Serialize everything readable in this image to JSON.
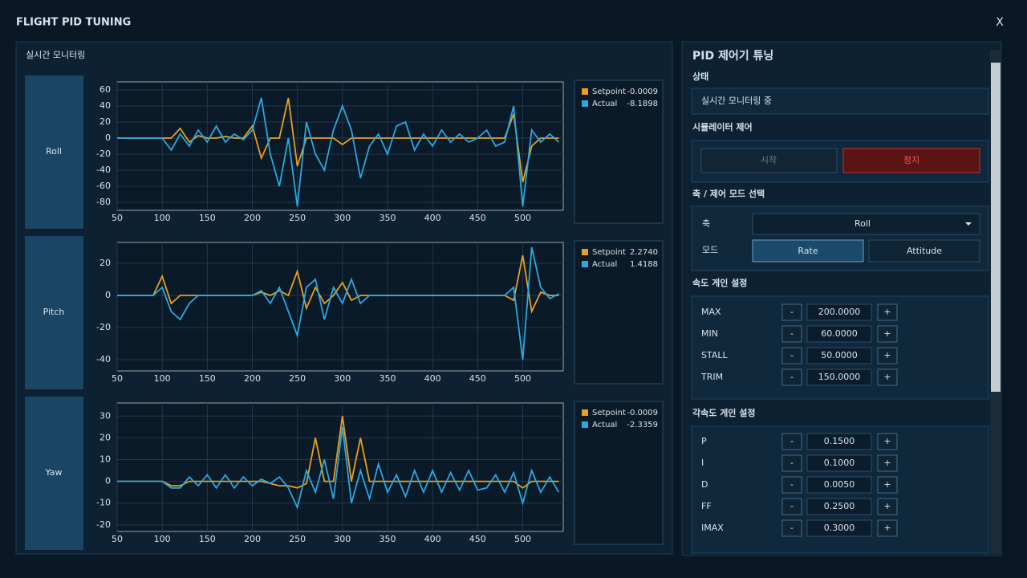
{
  "window": {
    "title": "FLIGHT PID TUNING",
    "close": "X"
  },
  "monitor": {
    "title": "실시간 모니터링"
  },
  "chart_data": [
    {
      "type": "line",
      "axis_label": "Roll",
      "x": [
        50,
        60,
        70,
        80,
        90,
        100,
        110,
        120,
        130,
        140,
        150,
        160,
        170,
        180,
        190,
        200,
        210,
        220,
        230,
        240,
        250,
        260,
        270,
        280,
        290,
        300,
        310,
        320,
        330,
        340,
        350,
        360,
        370,
        380,
        390,
        400,
        410,
        420,
        430,
        440,
        450,
        460,
        470,
        480,
        490,
        500,
        510,
        520,
        530,
        540
      ],
      "xlim": [
        50,
        545
      ],
      "xticks": [
        50,
        100,
        150,
        200,
        250,
        300,
        350,
        400,
        450,
        500
      ],
      "ylim": [
        -90,
        70
      ],
      "yticks": [
        60,
        40,
        20,
        0,
        -20,
        -40,
        -60,
        -80
      ],
      "grid": true,
      "series": [
        {
          "name": "Setpoint",
          "color": "#e8a020",
          "values": [
            0,
            0,
            0,
            0,
            0,
            0,
            0,
            12,
            -5,
            3,
            0,
            0,
            2,
            0,
            0,
            15,
            -25,
            0,
            0,
            50,
            -35,
            0,
            0,
            0,
            0,
            -8,
            0,
            0,
            0,
            0,
            0,
            0,
            0,
            0,
            0,
            0,
            0,
            0,
            0,
            0,
            0,
            0,
            0,
            0,
            30,
            -55,
            -10,
            0,
            0,
            0
          ]
        },
        {
          "name": "Actual",
          "color": "#2aa8e0",
          "values": [
            0,
            0,
            0,
            0,
            0,
            0,
            -15,
            5,
            -10,
            10,
            -5,
            15,
            -5,
            5,
            -2,
            10,
            50,
            -20,
            -60,
            0,
            -85,
            20,
            -20,
            -40,
            10,
            40,
            10,
            -50,
            -10,
            5,
            -20,
            15,
            20,
            -15,
            5,
            -10,
            10,
            -5,
            5,
            -5,
            0,
            10,
            -10,
            -5,
            40,
            -85,
            10,
            -5,
            5,
            -5
          ]
        }
      ],
      "legend_values": [
        "-0.0009",
        "-8.1898"
      ]
    },
    {
      "type": "line",
      "axis_label": "Pitch",
      "x": [
        50,
        60,
        70,
        80,
        90,
        100,
        110,
        120,
        130,
        140,
        150,
        160,
        170,
        180,
        190,
        200,
        210,
        220,
        230,
        240,
        250,
        260,
        270,
        280,
        290,
        300,
        310,
        320,
        330,
        340,
        350,
        360,
        370,
        380,
        390,
        400,
        410,
        420,
        430,
        440,
        450,
        460,
        470,
        480,
        490,
        500,
        510,
        520,
        530,
        540
      ],
      "xlim": [
        50,
        545
      ],
      "xticks": [
        50,
        100,
        150,
        200,
        250,
        300,
        350,
        400,
        450,
        500
      ],
      "ylim": [
        -47,
        33
      ],
      "yticks": [
        20,
        0,
        -20,
        -40
      ],
      "grid": true,
      "series": [
        {
          "name": "Setpoint",
          "color": "#e8a020",
          "values": [
            0,
            0,
            0,
            0,
            0,
            12,
            -5,
            0,
            0,
            0,
            0,
            0,
            0,
            0,
            0,
            0,
            2,
            0,
            3,
            0,
            15,
            -8,
            5,
            -5,
            0,
            8,
            -3,
            0,
            0,
            0,
            0,
            0,
            0,
            0,
            0,
            0,
            0,
            0,
            0,
            0,
            0,
            0,
            0,
            0,
            -3,
            25,
            -10,
            2,
            0,
            0
          ]
        },
        {
          "name": "Actual",
          "color": "#2aa8e0",
          "values": [
            0,
            0,
            0,
            0,
            0,
            5,
            -10,
            -15,
            -5,
            0,
            0,
            0,
            0,
            0,
            0,
            0,
            3,
            -5,
            5,
            -10,
            -25,
            5,
            10,
            -15,
            5,
            -5,
            10,
            -5,
            0,
            0,
            0,
            0,
            0,
            0,
            0,
            0,
            0,
            0,
            0,
            0,
            0,
            0,
            0,
            0,
            5,
            -40,
            30,
            5,
            -2,
            1
          ]
        }
      ],
      "legend_values": [
        "2.2740",
        "1.4188"
      ]
    },
    {
      "type": "line",
      "axis_label": "Yaw",
      "x": [
        50,
        60,
        70,
        80,
        90,
        100,
        110,
        120,
        130,
        140,
        150,
        160,
        170,
        180,
        190,
        200,
        210,
        220,
        230,
        240,
        250,
        260,
        270,
        280,
        290,
        300,
        310,
        320,
        330,
        340,
        350,
        360,
        370,
        380,
        390,
        400,
        410,
        420,
        430,
        440,
        450,
        460,
        470,
        480,
        490,
        500,
        510,
        520,
        530,
        540
      ],
      "xlim": [
        50,
        545
      ],
      "xticks": [
        50,
        100,
        150,
        200,
        250,
        300,
        350,
        400,
        450,
        500
      ],
      "ylim": [
        -23,
        36
      ],
      "yticks": [
        30,
        20,
        10,
        0,
        -10,
        -20
      ],
      "grid": true,
      "series": [
        {
          "name": "Setpoint",
          "color": "#e8a020",
          "values": [
            0,
            0,
            0,
            0,
            0,
            0,
            -2,
            -2,
            0,
            0,
            0,
            0,
            0,
            0,
            0,
            0,
            0,
            -1,
            -2,
            -2,
            -3,
            -1,
            20,
            0,
            0,
            30,
            0,
            20,
            0,
            0,
            0,
            0,
            0,
            0,
            0,
            0,
            0,
            0,
            0,
            0,
            0,
            0,
            0,
            0,
            0,
            -3,
            0,
            0,
            0,
            0
          ]
        },
        {
          "name": "Actual",
          "color": "#2aa8e0",
          "values": [
            0,
            0,
            0,
            0,
            0,
            0,
            -3,
            -3,
            2,
            -2,
            3,
            -3,
            3,
            -3,
            2,
            -2,
            1,
            -1,
            2,
            -3,
            -12,
            5,
            -5,
            10,
            -8,
            25,
            -10,
            5,
            -8,
            8,
            -5,
            3,
            -7,
            5,
            -5,
            5,
            -5,
            4,
            -4,
            5,
            -4,
            -3,
            3,
            -5,
            4,
            -10,
            5,
            -5,
            2,
            -5
          ]
        }
      ],
      "legend_values": [
        "-0.0009",
        "-2.3359"
      ]
    }
  ],
  "pid_panel": {
    "title": "PID 제어기 튜닝",
    "status_heading": "상태",
    "status": "실시간 모니터링 중",
    "sim_heading": "시뮬레이터 제어",
    "start": "시작",
    "stop": "정지",
    "axis_heading": "축 / 제어 모드 선택",
    "axis_label": "축",
    "axis_value": "Roll",
    "mode_label": "모드",
    "modes": [
      "Rate",
      "Attitude"
    ],
    "minus": "-",
    "plus": "+",
    "rate_heading": "속도 게인 설정",
    "rate_gains": [
      {
        "name": "MAX",
        "value": "200.0000"
      },
      {
        "name": "MIN",
        "value": "60.0000"
      },
      {
        "name": "STALL",
        "value": "50.0000"
      },
      {
        "name": "TRIM",
        "value": "150.0000"
      }
    ],
    "ang_heading": "각속도 게인 설정",
    "ang_gains": [
      {
        "name": "P",
        "value": "0.1500"
      },
      {
        "name": "I",
        "value": "0.1000"
      },
      {
        "name": "D",
        "value": "0.0050"
      },
      {
        "name": "FF",
        "value": "0.2500"
      },
      {
        "name": "IMAX",
        "value": "0.3000"
      }
    ]
  }
}
